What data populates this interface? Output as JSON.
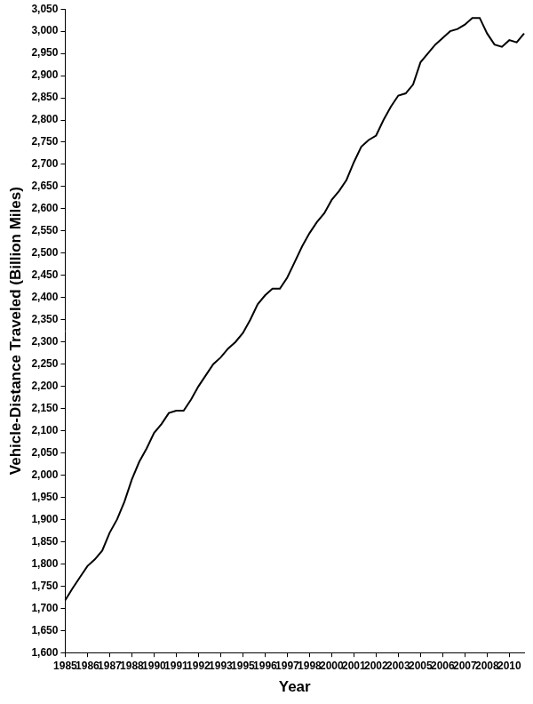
{
  "chart_data": {
    "type": "line",
    "x_label": "Year",
    "y_label": "Vehicle-Distance Traveled (Billion Miles)",
    "color": "#000000",
    "grid": false,
    "categories": [
      "1985",
      null,
      null,
      "1986",
      null,
      null,
      "1987",
      null,
      null,
      "1988",
      null,
      null,
      "1990",
      null,
      null,
      "1991",
      null,
      null,
      "1992",
      null,
      null,
      "1993",
      null,
      null,
      "1995",
      null,
      null,
      "1996",
      null,
      null,
      "1997",
      null,
      null,
      "1998",
      null,
      null,
      "2000",
      null,
      null,
      "2001",
      null,
      null,
      "2002",
      null,
      null,
      "2003",
      null,
      null,
      "2005",
      null,
      null,
      "2006",
      null,
      null,
      "2007",
      null,
      null,
      "2008",
      null,
      null,
      "2010",
      null,
      null
    ],
    "values": [
      1718,
      1745,
      1770,
      1795,
      1810,
      1830,
      1870,
      1900,
      1940,
      1990,
      2030,
      2060,
      2095,
      2115,
      2140,
      2145,
      2145,
      2170,
      2200,
      2225,
      2250,
      2265,
      2285,
      2300,
      2320,
      2350,
      2385,
      2405,
      2420,
      2420,
      2445,
      2480,
      2515,
      2545,
      2570,
      2590,
      2620,
      2640,
      2665,
      2705,
      2740,
      2755,
      2765,
      2800,
      2830,
      2855,
      2860,
      2880,
      2930,
      2950,
      2970,
      2985,
      3000,
      3005,
      3015,
      3030,
      3030,
      2995,
      2970,
      2965,
      2980,
      2975,
      2995
    ],
    "ylim": [
      1600,
      3050
    ],
    "yticks": [
      {
        "value": 1600,
        "label": "1,600"
      },
      {
        "value": 1650,
        "label": "1,650"
      },
      {
        "value": 1700,
        "label": "1,700"
      },
      {
        "value": 1750,
        "label": "1,750"
      },
      {
        "value": 1800,
        "label": "1,800"
      },
      {
        "value": 1850,
        "label": "1,850"
      },
      {
        "value": 1900,
        "label": "1,900"
      },
      {
        "value": 1950,
        "label": "1,950"
      },
      {
        "value": 2000,
        "label": "2,000"
      },
      {
        "value": 2050,
        "label": "2,050"
      },
      {
        "value": 2100,
        "label": "2,100"
      },
      {
        "value": 2150,
        "label": "2,150"
      },
      {
        "value": 2200,
        "label": "2,200"
      },
      {
        "value": 2250,
        "label": "2,250"
      },
      {
        "value": 2300,
        "label": "2,300"
      },
      {
        "value": 2350,
        "label": "2,350"
      },
      {
        "value": 2400,
        "label": "2,400"
      },
      {
        "value": 2450,
        "label": "2,450"
      },
      {
        "value": 2500,
        "label": "2,500"
      },
      {
        "value": 2550,
        "label": "2,550"
      },
      {
        "value": 2600,
        "label": "2,600"
      },
      {
        "value": 2650,
        "label": "2,650"
      },
      {
        "value": 2700,
        "label": "2,700"
      },
      {
        "value": 2750,
        "label": "2,750"
      },
      {
        "value": 2800,
        "label": "2,800"
      },
      {
        "value": 2850,
        "label": "2,850"
      },
      {
        "value": 2900,
        "label": "2,900"
      },
      {
        "value": 2950,
        "label": "2,950"
      },
      {
        "value": 3000,
        "label": "3,000"
      },
      {
        "value": 3050,
        "label": "3,050"
      }
    ]
  }
}
